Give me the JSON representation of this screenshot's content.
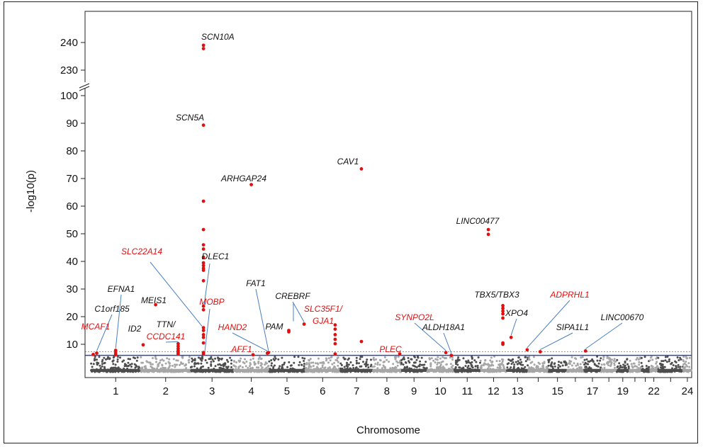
{
  "chart_data": {
    "type": "scatter",
    "subtype": "manhattan",
    "xlabel": "Chromosome",
    "ylabel": "-log10(p)",
    "y_ticks": [
      10,
      20,
      30,
      40,
      50,
      60,
      70,
      80,
      90,
      100,
      230,
      240
    ],
    "y_axis_break": [
      102,
      228
    ],
    "x_tick_labels": [
      "1",
      "2",
      "3",
      "4",
      "5",
      "6",
      "7",
      "8",
      "9",
      "10",
      "11",
      "12",
      "13",
      "15",
      "17",
      "19",
      "22",
      "24"
    ],
    "chromosomes": [
      "1",
      "2",
      "3",
      "4",
      "5",
      "6",
      "7",
      "8",
      "9",
      "10",
      "11",
      "12",
      "13",
      "14",
      "15",
      "16",
      "17",
      "18",
      "19",
      "20",
      "21",
      "22",
      "23",
      "24"
    ],
    "chromosome_alternating_colors": [
      "#4d4d4d",
      "#a6a6a6"
    ],
    "significance_line": 7.3,
    "suggestive_line": 6.0,
    "significance_line_color": "#999999",
    "suggestive_line_color": "#3344aa",
    "highlight_color": "#e01010",
    "label_colors": {
      "known": "#111111",
      "novel": "#e01010"
    },
    "hits": [
      {
        "gene": "MCAF1",
        "novel": true,
        "chr": 1,
        "pos": 0.05,
        "values": [
          6.3
        ]
      },
      {
        "gene": "C1orf185",
        "novel": false,
        "chr": 1,
        "pos": 0.12,
        "values": [
          6.8
        ]
      },
      {
        "gene": "EFNA1",
        "novel": false,
        "chr": 1,
        "pos": 0.5,
        "values": [
          7.8,
          6.8,
          6.2
        ]
      },
      {
        "gene": "ID2",
        "novel": false,
        "chr": 2,
        "pos": 0.05,
        "values": [
          9.8
        ]
      },
      {
        "gene": "MEIS1",
        "novel": false,
        "chr": 2,
        "pos": 0.3,
        "values": [
          24.3
        ]
      },
      {
        "gene": "TTN/CCDC141",
        "novel": true,
        "chr": 2,
        "pos": 0.75,
        "values": [
          10.2,
          9.3,
          8.5,
          7.8,
          7.1,
          6.5
        ]
      },
      {
        "gene": "SCN10A",
        "novel": false,
        "chr": 3,
        "pos": 0.3,
        "values": [
          239.0,
          237.8
        ]
      },
      {
        "gene": "SCN5A",
        "novel": false,
        "chr": 3,
        "pos": 0.3,
        "values": [
          89.3,
          61.8,
          51.5,
          46.0,
          44.5,
          41.5,
          39.5,
          38.5,
          37.5,
          36.8,
          33.0,
          23.8,
          22.5,
          16.0,
          15.0,
          13.5,
          12.5,
          10.5,
          7.0,
          6.5
        ]
      },
      {
        "gene": "ARHGAP24",
        "novel": false,
        "chr": 4,
        "pos": 0.5,
        "values": [
          67.8
        ]
      },
      {
        "gene": "AFF1",
        "novel": true,
        "chr": 4,
        "pos": 0.55,
        "values": [
          6.2
        ]
      },
      {
        "gene": "HAND2",
        "novel": true,
        "chr": 4,
        "pos": 0.95,
        "values": [
          6.8
        ]
      },
      {
        "gene": "FAT1",
        "novel": false,
        "chr": 4,
        "pos": 0.98,
        "values": [
          7.0
        ]
      },
      {
        "gene": "PAM",
        "novel": false,
        "chr": 5,
        "pos": 0.55,
        "values": [
          15.0,
          14.5
        ]
      },
      {
        "gene": "CREBRF",
        "novel": false,
        "chr": 5,
        "pos": 0.98,
        "values": [
          17.3
        ]
      },
      {
        "gene": "SLC35F1/GJA1",
        "novel": true,
        "chr": 6,
        "pos": 0.85,
        "values": [
          17.0,
          15.5,
          13.5,
          11.8,
          10.2,
          6.5
        ]
      },
      {
        "gene": "CAV1",
        "novel": false,
        "chr": 7,
        "pos": 0.65,
        "values": [
          73.5,
          11.0
        ]
      },
      {
        "gene": "PLEC",
        "novel": true,
        "chr": 8,
        "pos": 0.95,
        "values": [
          6.5
        ]
      },
      {
        "gene": "SYNPO2L",
        "novel": true,
        "chr": 10,
        "pos": 0.7,
        "values": [
          7.0
        ]
      },
      {
        "gene": "ALDH18A1",
        "novel": false,
        "chr": 10,
        "pos": 0.9,
        "values": [
          6.0
        ]
      },
      {
        "gene": "LINC00477",
        "novel": false,
        "chr": 12,
        "pos": 0.3,
        "values": [
          51.5,
          49.8
        ]
      },
      {
        "gene": "TBX5/TBX3",
        "novel": false,
        "chr": 12,
        "pos": 0.85,
        "values": [
          24.0,
          23.0,
          22.0,
          21.0,
          19.5,
          10.5,
          10.0
        ]
      },
      {
        "gene": "XPO4",
        "novel": false,
        "chr": 13,
        "pos": 0.2,
        "values": [
          12.5
        ]
      },
      {
        "gene": "ADPRHL1",
        "novel": true,
        "chr": 13,
        "pos": 0.95,
        "values": [
          8.0
        ]
      },
      {
        "gene": "SIPA1L1",
        "novel": false,
        "chr": 14,
        "pos": 0.6,
        "values": [
          7.3
        ]
      },
      {
        "gene": "LINC00670",
        "novel": false,
        "chr": 17,
        "pos": 0.1,
        "values": [
          7.6
        ]
      }
    ]
  }
}
